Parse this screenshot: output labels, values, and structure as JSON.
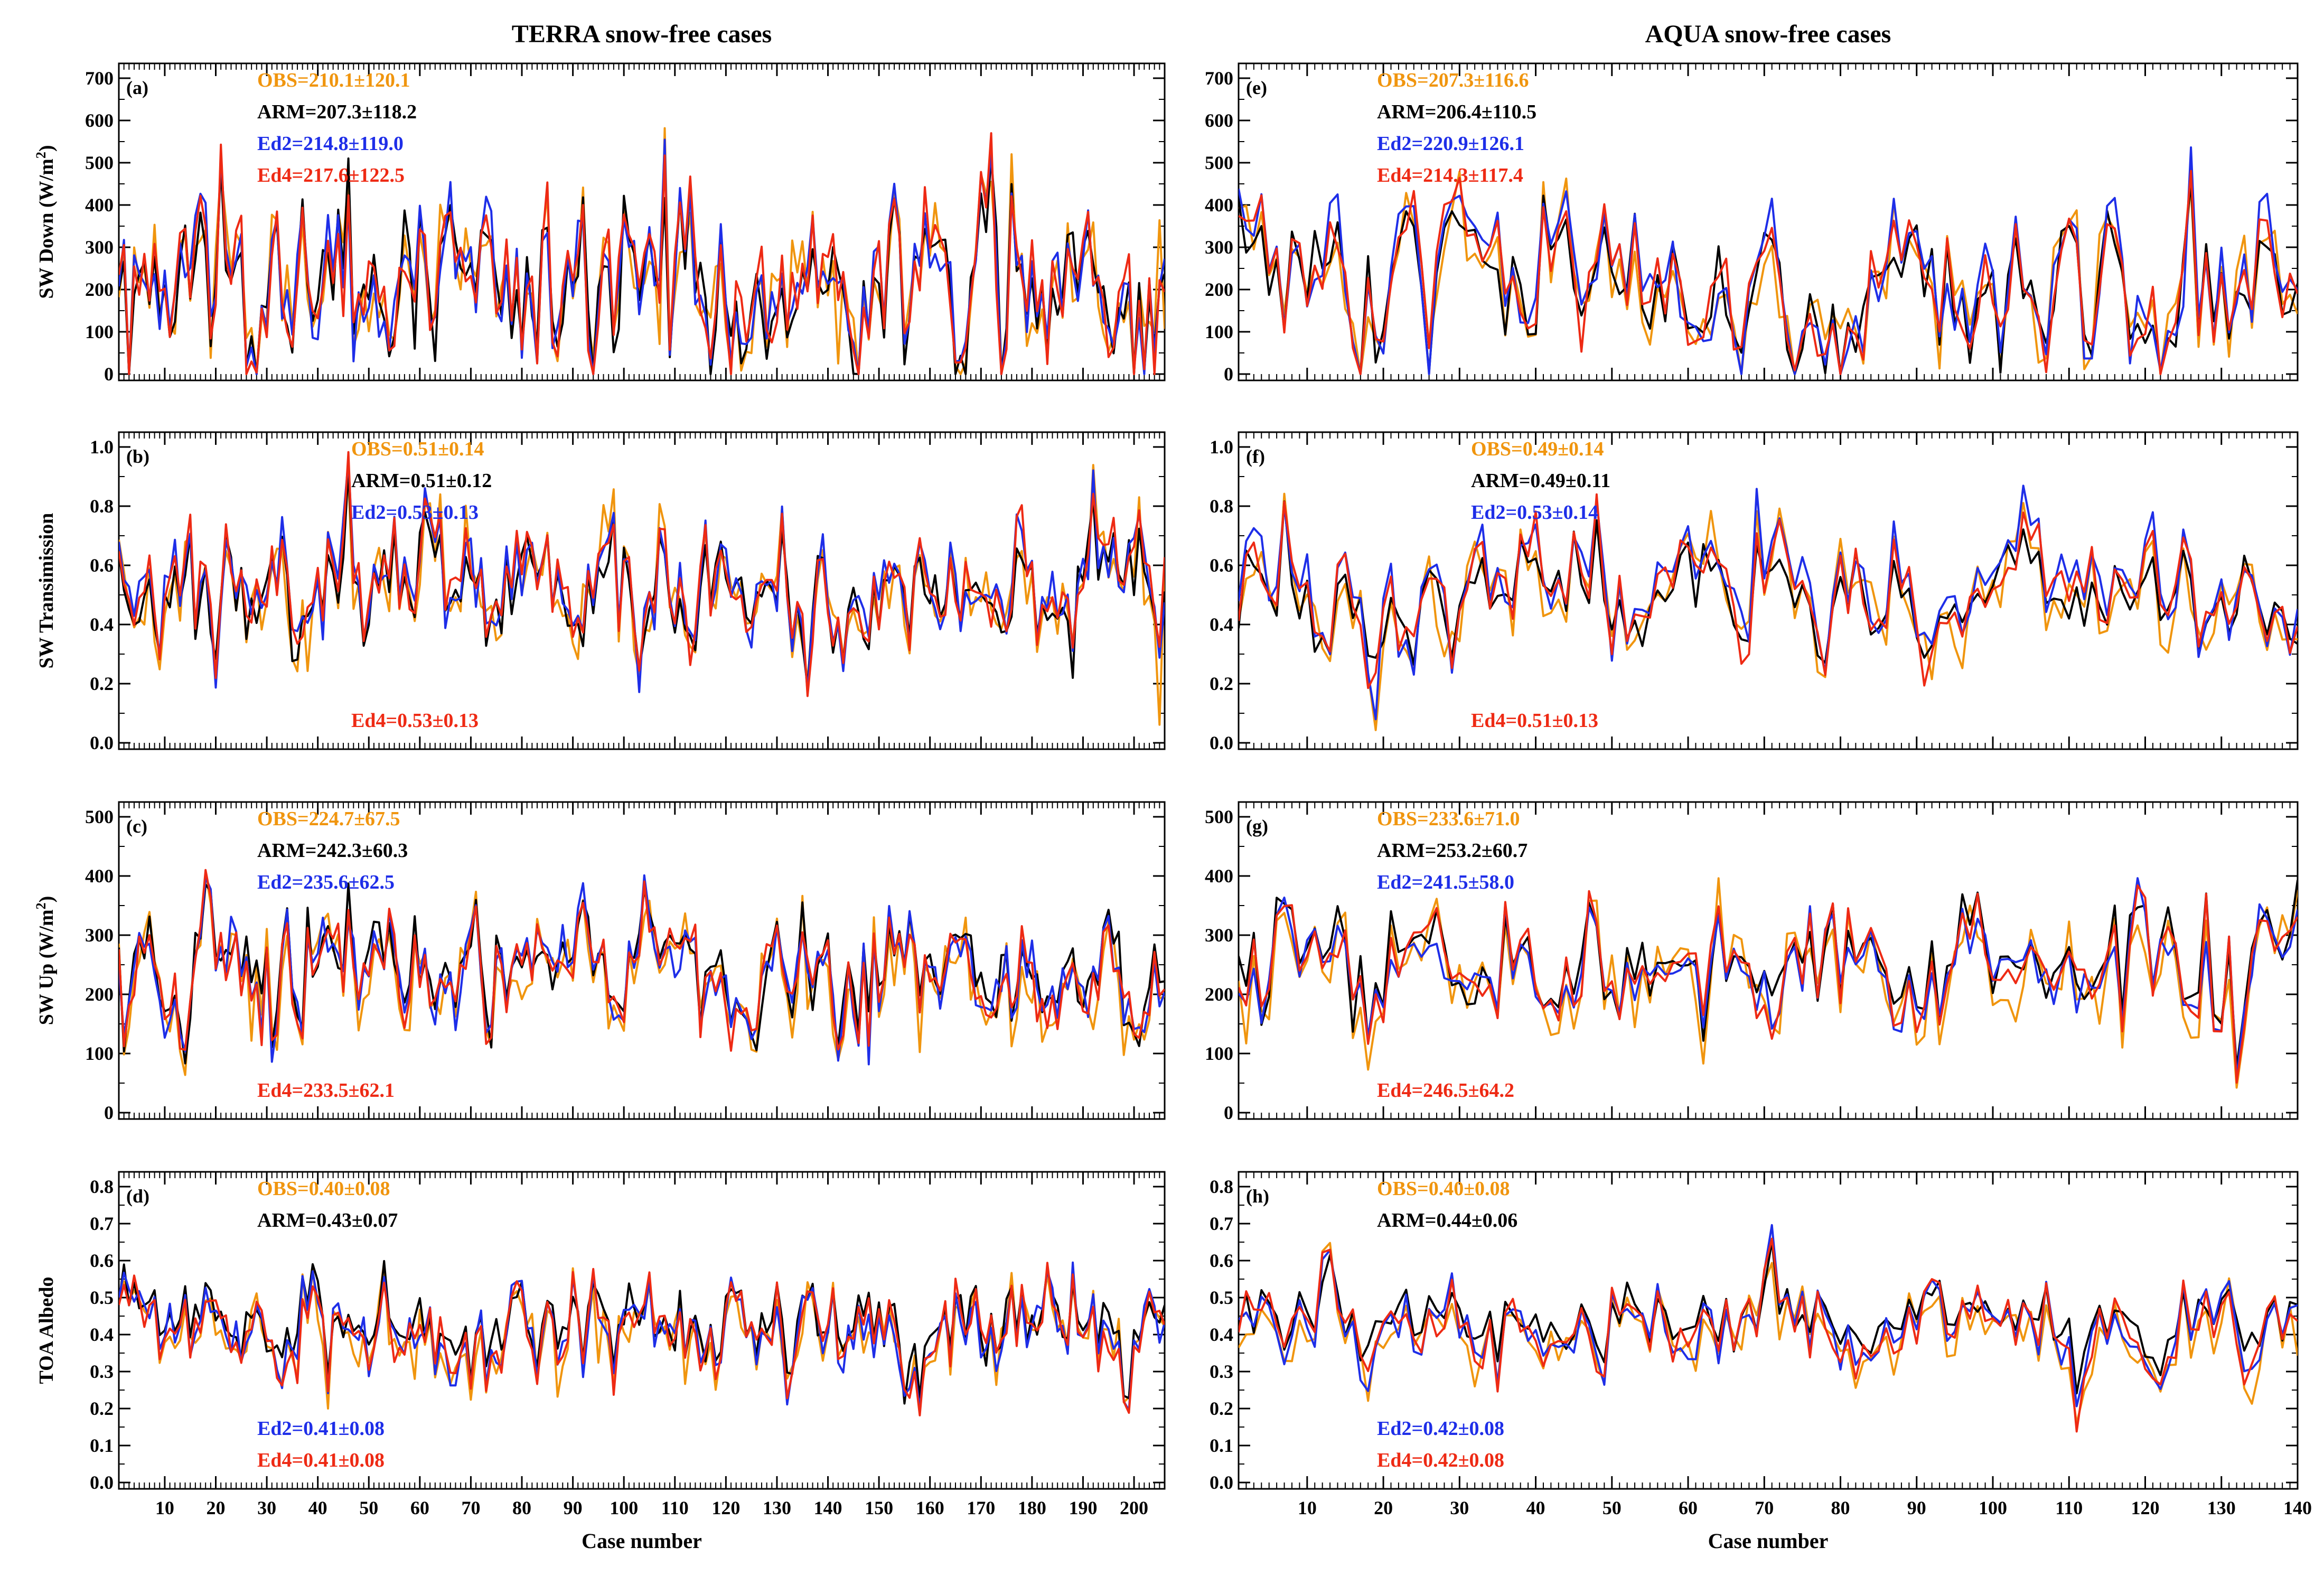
{
  "colors": {
    "OBS": "#f0950e",
    "ARM": "#000000",
    "Ed2": "#1e2ee8",
    "Ed4": "#ee2a14"
  },
  "chart_data": [
    {
      "type": "line",
      "column": "TERRA snow-free cases",
      "panel": "(a)",
      "ylabel": "SW Down (W/m²)",
      "xlabel": "",
      "ylim": [
        0,
        700
      ],
      "yticks": [
        0,
        100,
        200,
        300,
        400,
        500,
        600,
        700
      ],
      "xlim": [
        1,
        206
      ],
      "xticks": [
        10,
        20,
        30,
        40,
        50,
        60,
        70,
        80,
        90,
        100,
        110,
        120,
        130,
        140,
        150,
        160,
        170,
        180,
        190,
        200
      ],
      "n_cases": 206,
      "stats": [
        {
          "series": "OBS",
          "text": "OBS=210.1±120.1",
          "row": 0
        },
        {
          "series": "ARM",
          "text": "ARM=207.3±118.2",
          "row": 1
        },
        {
          "series": "Ed2",
          "text": "Ed2=214.8±119.0",
          "row": 2
        },
        {
          "series": "Ed4",
          "text": "Ed4=217.6±122.5",
          "row": 3
        }
      ],
      "stats_values": {
        "OBS": [
          210.1,
          120.1
        ],
        "ARM": [
          207.3,
          118.2
        ],
        "Ed2": [
          214.8,
          119.0
        ],
        "Ed4": [
          217.6,
          122.5
        ]
      }
    },
    {
      "type": "line",
      "column": "TERRA snow-free cases",
      "panel": "(b)",
      "ylabel": "SW Transimission",
      "xlabel": "",
      "ylim": [
        0,
        1.0
      ],
      "yticks": [
        0.0,
        0.2,
        0.4,
        0.6,
        0.8,
        1.0
      ],
      "xlim": [
        1,
        206
      ],
      "xticks": [
        10,
        20,
        30,
        40,
        50,
        60,
        70,
        80,
        90,
        100,
        110,
        120,
        130,
        140,
        150,
        160,
        170,
        180,
        190,
        200
      ],
      "n_cases": 206,
      "stats": [
        {
          "series": "OBS",
          "text": "OBS=0.51±0.14",
          "row": 0
        },
        {
          "series": "ARM",
          "text": "ARM=0.51±0.12",
          "row": 1
        },
        {
          "series": "Ed2",
          "text": "Ed2=0.53±0.13",
          "row": 2
        },
        {
          "series": "Ed4",
          "text": "Ed4=0.53±0.13",
          "row": "bottom"
        }
      ],
      "stats_values": {
        "OBS": [
          0.51,
          0.14
        ],
        "ARM": [
          0.51,
          0.12
        ],
        "Ed2": [
          0.53,
          0.13
        ],
        "Ed4": [
          0.53,
          0.13
        ]
      }
    },
    {
      "type": "line",
      "column": "TERRA snow-free cases",
      "panel": "(c)",
      "ylabel": "SW Up (W/m²)",
      "xlabel": "",
      "ylim": [
        0,
        500
      ],
      "yticks": [
        0,
        100,
        200,
        300,
        400,
        500
      ],
      "xlim": [
        1,
        206
      ],
      "xticks": [
        10,
        20,
        30,
        40,
        50,
        60,
        70,
        80,
        90,
        100,
        110,
        120,
        130,
        140,
        150,
        160,
        170,
        180,
        190,
        200
      ],
      "n_cases": 206,
      "stats": [
        {
          "series": "OBS",
          "text": "OBS=224.7±67.5",
          "row": 0
        },
        {
          "series": "ARM",
          "text": "ARM=242.3±60.3",
          "row": 1
        },
        {
          "series": "Ed2",
          "text": "Ed2=235.6±62.5",
          "row": 2
        },
        {
          "series": "Ed4",
          "text": "Ed4=233.5±62.1",
          "row": "bottom"
        }
      ],
      "stats_values": {
        "OBS": [
          224.7,
          67.5
        ],
        "ARM": [
          242.3,
          60.3
        ],
        "Ed2": [
          235.6,
          62.5
        ],
        "Ed4": [
          233.5,
          62.1
        ]
      }
    },
    {
      "type": "line",
      "column": "TERRA snow-free cases",
      "panel": "(d)",
      "ylabel": "TOA Albedo",
      "xlabel": "Case number",
      "ylim": [
        0,
        0.8
      ],
      "yticks": [
        0.0,
        0.1,
        0.2,
        0.3,
        0.4,
        0.5,
        0.6,
        0.7,
        0.8
      ],
      "xlim": [
        1,
        206
      ],
      "xticks": [
        10,
        20,
        30,
        40,
        50,
        60,
        70,
        80,
        90,
        100,
        110,
        120,
        130,
        140,
        150,
        160,
        170,
        180,
        190,
        200
      ],
      "n_cases": 206,
      "stats": [
        {
          "series": "OBS",
          "text": "OBS=0.40±0.08",
          "row": 0
        },
        {
          "series": "ARM",
          "text": "ARM=0.43±0.07",
          "row": 1
        },
        {
          "series": "Ed2",
          "text": "Ed2=0.41±0.08",
          "row": "bottom2"
        },
        {
          "series": "Ed4",
          "text": "Ed4=0.41±0.08",
          "row": "bottom"
        }
      ],
      "stats_values": {
        "OBS": [
          0.4,
          0.08
        ],
        "ARM": [
          0.43,
          0.07
        ],
        "Ed2": [
          0.41,
          0.08
        ],
        "Ed4": [
          0.41,
          0.08
        ]
      }
    },
    {
      "type": "line",
      "column": "AQUA snow-free cases",
      "panel": "(e)",
      "ylabel": "",
      "xlabel": "",
      "ylim": [
        0,
        700
      ],
      "yticks": [
        0,
        100,
        200,
        300,
        400,
        500,
        600,
        700
      ],
      "xlim": [
        1,
        140
      ],
      "xticks": [
        10,
        20,
        30,
        40,
        50,
        60,
        70,
        80,
        90,
        100,
        110,
        120,
        130,
        140
      ],
      "n_cases": 140,
      "stats": [
        {
          "series": "OBS",
          "text": "OBS=207.3±116.6",
          "row": 0
        },
        {
          "series": "ARM",
          "text": "ARM=206.4±110.5",
          "row": 1
        },
        {
          "series": "Ed2",
          "text": "Ed2=220.9±126.1",
          "row": 2
        },
        {
          "series": "Ed4",
          "text": "Ed4=214.3±117.4",
          "row": 3
        }
      ],
      "stats_values": {
        "OBS": [
          207.3,
          116.6
        ],
        "ARM": [
          206.4,
          110.5
        ],
        "Ed2": [
          220.9,
          126.1
        ],
        "Ed4": [
          214.3,
          117.4
        ]
      }
    },
    {
      "type": "line",
      "column": "AQUA snow-free cases",
      "panel": "(f)",
      "ylabel": "",
      "xlabel": "",
      "ylim": [
        0,
        1.0
      ],
      "yticks": [
        0.0,
        0.2,
        0.4,
        0.6,
        0.8,
        1.0
      ],
      "xlim": [
        1,
        140
      ],
      "xticks": [
        10,
        20,
        30,
        40,
        50,
        60,
        70,
        80,
        90,
        100,
        110,
        120,
        130,
        140
      ],
      "n_cases": 140,
      "stats": [
        {
          "series": "OBS",
          "text": "OBS=0.49±0.14",
          "row": 0
        },
        {
          "series": "ARM",
          "text": "ARM=0.49±0.11",
          "row": 1
        },
        {
          "series": "Ed2",
          "text": "Ed2=0.53±0.14",
          "row": 2
        },
        {
          "series": "Ed4",
          "text": "Ed4=0.51±0.13",
          "row": "bottom"
        }
      ],
      "stats_values": {
        "OBS": [
          0.49,
          0.14
        ],
        "ARM": [
          0.49,
          0.11
        ],
        "Ed2": [
          0.53,
          0.14
        ],
        "Ed4": [
          0.51,
          0.13
        ]
      }
    },
    {
      "type": "line",
      "column": "AQUA snow-free cases",
      "panel": "(g)",
      "ylabel": "",
      "xlabel": "",
      "ylim": [
        0,
        500
      ],
      "yticks": [
        0,
        100,
        200,
        300,
        400,
        500
      ],
      "xlim": [
        1,
        140
      ],
      "xticks": [
        10,
        20,
        30,
        40,
        50,
        60,
        70,
        80,
        90,
        100,
        110,
        120,
        130,
        140
      ],
      "n_cases": 140,
      "stats": [
        {
          "series": "OBS",
          "text": "OBS=233.6±71.0",
          "row": 0
        },
        {
          "series": "ARM",
          "text": "ARM=253.2±60.7",
          "row": 1
        },
        {
          "series": "Ed2",
          "text": "Ed2=241.5±58.0",
          "row": 2
        },
        {
          "series": "Ed4",
          "text": "Ed4=246.5±64.2",
          "row": "bottom"
        }
      ],
      "stats_values": {
        "OBS": [
          233.6,
          71.0
        ],
        "ARM": [
          253.2,
          60.7
        ],
        "Ed2": [
          241.5,
          58.0
        ],
        "Ed4": [
          246.5,
          64.2
        ]
      }
    },
    {
      "type": "line",
      "column": "AQUA snow-free cases",
      "panel": "(h)",
      "ylabel": "",
      "xlabel": "Case number",
      "ylim": [
        0,
        0.8
      ],
      "yticks": [
        0.0,
        0.1,
        0.2,
        0.3,
        0.4,
        0.5,
        0.6,
        0.7,
        0.8
      ],
      "xlim": [
        1,
        140
      ],
      "xticks": [
        10,
        20,
        30,
        40,
        50,
        60,
        70,
        80,
        90,
        100,
        110,
        120,
        130,
        140
      ],
      "n_cases": 140,
      "stats": [
        {
          "series": "OBS",
          "text": "OBS=0.40±0.08",
          "row": 0
        },
        {
          "series": "ARM",
          "text": "ARM=0.44±0.06",
          "row": 1
        },
        {
          "series": "Ed2",
          "text": "Ed2=0.42±0.08",
          "row": "bottom2"
        },
        {
          "series": "Ed4",
          "text": "Ed4=0.42±0.08",
          "row": "bottom"
        }
      ],
      "stats_values": {
        "OBS": [
          0.4,
          0.08
        ],
        "ARM": [
          0.44,
          0.06
        ],
        "Ed2": [
          0.42,
          0.08
        ],
        "Ed4": [
          0.42,
          0.08
        ]
      }
    }
  ]
}
